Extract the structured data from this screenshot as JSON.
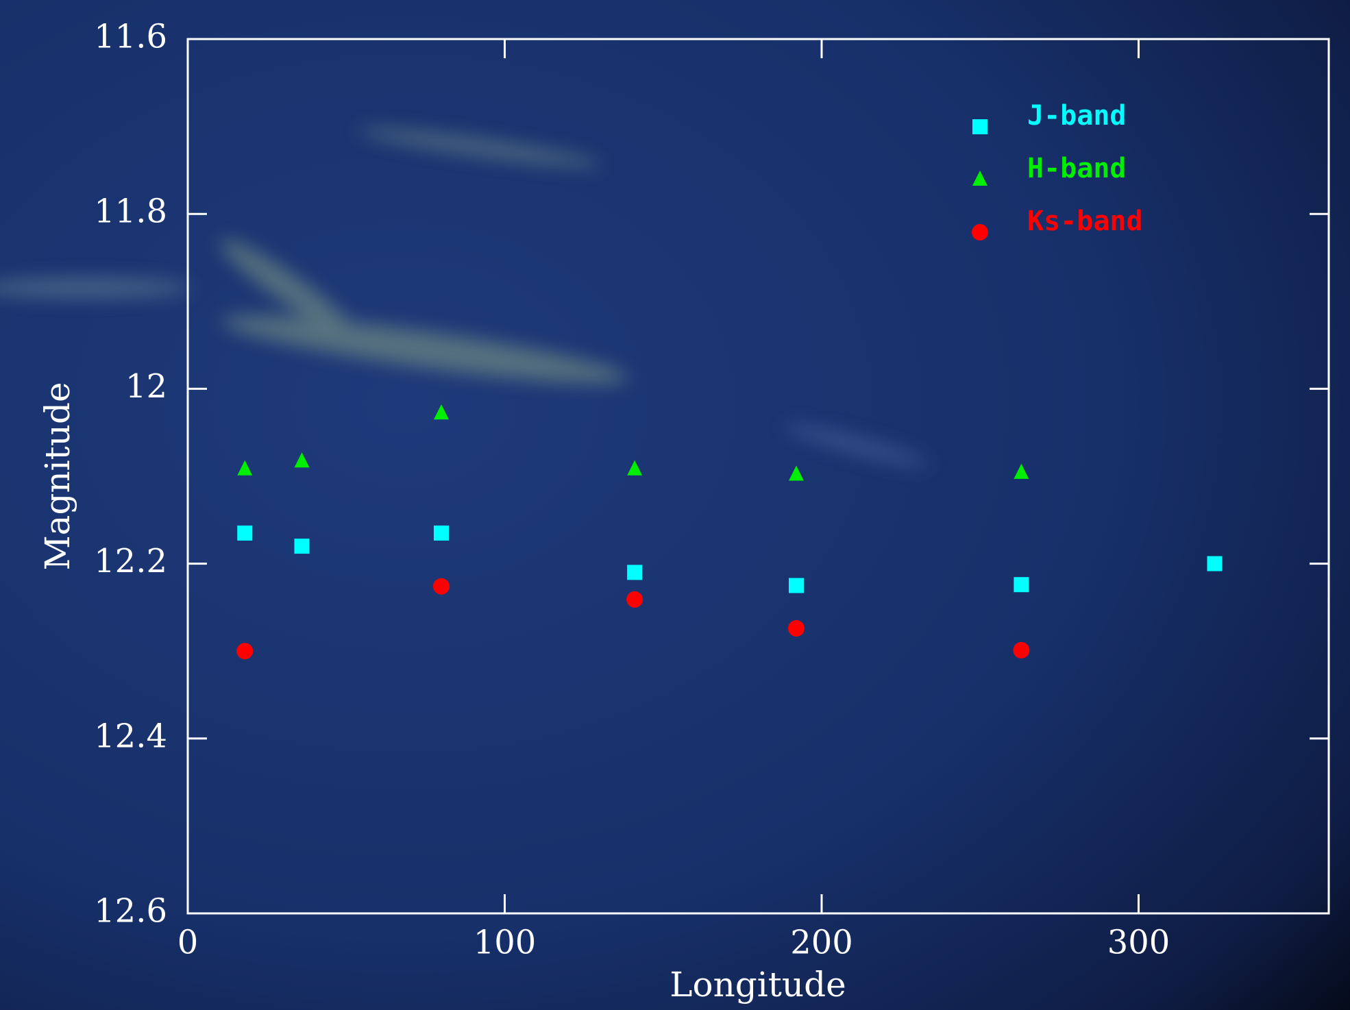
{
  "chart_data": {
    "type": "scatter",
    "xlabel": "Longitude",
    "ylabel": "Magnitude",
    "xlim": [
      0,
      360
    ],
    "xticks": [
      0,
      100,
      200,
      300
    ],
    "ylim": [
      12.6,
      11.6
    ],
    "yticks": [
      11.6,
      11.8,
      12,
      12.2,
      12.4,
      12.6
    ],
    "legend": "upper right",
    "series": [
      {
        "name": "J-band",
        "color": "#00ffff",
        "marker": "square",
        "x": [
          18,
          36,
          80,
          141,
          192,
          263,
          324
        ],
        "values": [
          12.165,
          12.18,
          12.165,
          12.21,
          12.225,
          12.224,
          12.2
        ]
      },
      {
        "name": "H-band",
        "color": "#00ee00",
        "marker": "triangle",
        "x": [
          18,
          36,
          80,
          141,
          192,
          263
        ],
        "values": [
          12.092,
          12.083,
          12.028,
          12.092,
          12.098,
          12.096
        ]
      },
      {
        "name": "Ks-band",
        "color": "#ff0000",
        "marker": "circle",
        "x": [
          18,
          80,
          141,
          192,
          263
        ],
        "values": [
          12.3,
          12.226,
          12.241,
          12.274,
          12.299
        ]
      }
    ]
  }
}
